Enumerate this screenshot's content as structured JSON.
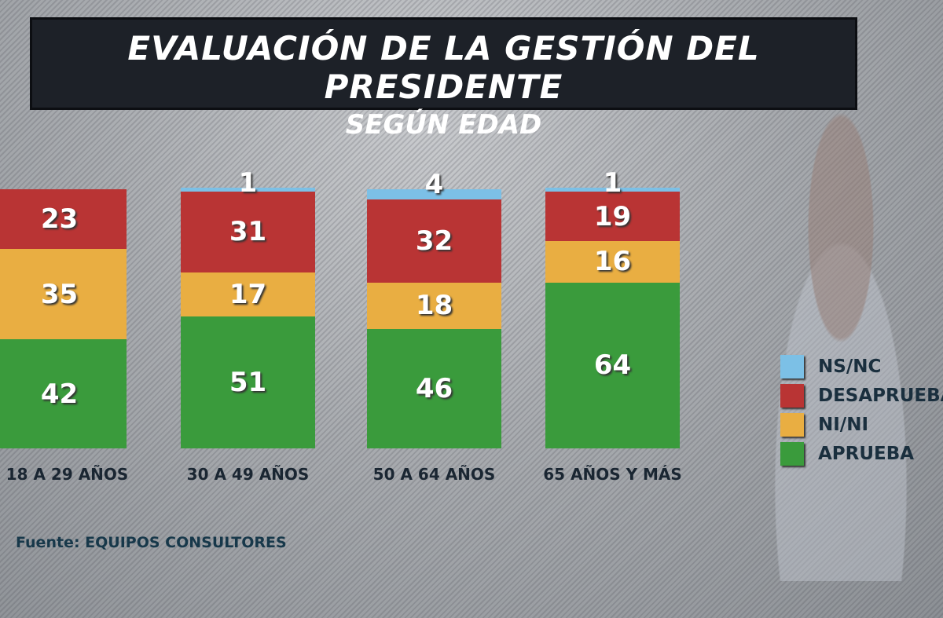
{
  "chart_data": {
    "type": "stacked-bar",
    "title": "EVALUACIÓN DE LA GESTIÓN DEL PRESIDENTE",
    "subtitle": "SEGÚN EDAD",
    "categories": [
      "18 A 29 AÑOS",
      "30 A 49 AÑOS",
      "50 A 64 AÑOS",
      "65 AÑOS Y MÁS"
    ],
    "series": [
      {
        "name": "APRUEBA",
        "color": "#3a9b3c",
        "values": [
          42,
          51,
          46,
          64
        ]
      },
      {
        "name": "NI/NI",
        "color": "#e9ae42",
        "values": [
          35,
          17,
          18,
          16
        ]
      },
      {
        "name": "DESAPRUEBA",
        "color": "#b93434",
        "values": [
          23,
          31,
          32,
          19
        ]
      },
      {
        "name": "NS/NC",
        "color": "#7cc0e6",
        "values": [
          null,
          1,
          4,
          1
        ]
      }
    ],
    "legend_order": [
      "NS/NC",
      "DESAPRUEBA",
      "NI/NI",
      "APRUEBA"
    ],
    "legend_position": "right",
    "ylim": [
      0,
      100
    ]
  },
  "source": {
    "label": "Fuente: ",
    "name": "EQUIPOS CONSULTORES"
  }
}
